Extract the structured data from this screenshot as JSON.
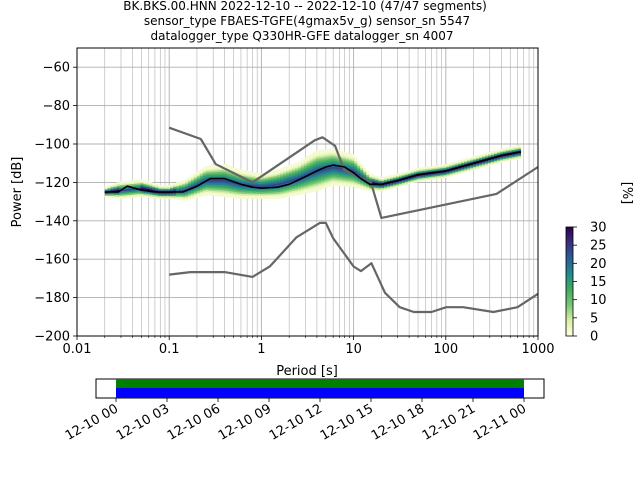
{
  "chart_data": {
    "type": "line",
    "title": [
      "BK.BKS.00.HNN   2022-12-10 -- 2022-12-10  (47/47 segments)",
      "sensor_type FBAES-TGFE(4gmax5v_g) sensor_sn 5547",
      "datalogger_type Q330HR-GFE datalogger_sn 4007"
    ],
    "xlabel": "Period [s]",
    "ylabel": "Power [dB]",
    "xscale": "log",
    "xlim": [
      0.01,
      1000
    ],
    "ylim": [
      -200,
      -50
    ],
    "x_ticks": [
      0.01,
      0.1,
      1,
      10,
      100,
      1000
    ],
    "x_tick_labels": [
      "0.01",
      "0.1",
      "1",
      "10",
      "100",
      "1000"
    ],
    "y_ticks": [
      -200,
      -180,
      -160,
      -140,
      -120,
      -100,
      -80,
      -60
    ],
    "y_tick_labels": [
      "−200",
      "−180",
      "−160",
      "−140",
      "−120",
      "−100",
      "−80",
      "−60"
    ],
    "grid": true,
    "series": [
      {
        "role": "nhnm",
        "color": "#666666",
        "x": [
          0.1,
          0.22,
          0.32,
          0.8,
          3.8,
          4.6,
          6.3,
          7.9,
          15.4,
          20,
          354.8,
          1000
        ],
        "y": [
          -91.5,
          -97.4,
          -110.5,
          -120,
          -98,
          -96.5,
          -101,
          -113.5,
          -120,
          -138.5,
          -126,
          -112
        ]
      },
      {
        "role": "nlnm",
        "color": "#666666",
        "x": [
          0.1,
          0.17,
          0.4,
          0.8,
          1.24,
          2.4,
          4.3,
          5,
          6,
          10,
          12,
          15.6,
          21.9,
          31.6,
          45,
          70,
          101,
          154,
          328,
          600,
          1000
        ],
        "y": [
          -168,
          -166.7,
          -166.7,
          -169.2,
          -163.7,
          -148.6,
          -141.1,
          -141.1,
          -149,
          -163.8,
          -166.2,
          -162.1,
          -177.5,
          -185,
          -187.5,
          -187.5,
          -185,
          -185,
          -187.5,
          -185,
          -178
        ]
      },
      {
        "role": "mode",
        "color": "#000000",
        "x": [
          0.02,
          0.028,
          0.035,
          0.05,
          0.07,
          0.1,
          0.14,
          0.2,
          0.28,
          0.4,
          0.6,
          0.8,
          1,
          1.5,
          2,
          3,
          4,
          5,
          6,
          8,
          10,
          12,
          15,
          20,
          30,
          50,
          70,
          100,
          200,
          400,
          650
        ],
        "y": [
          -125,
          -125,
          -122,
          -124,
          -125,
          -125,
          -125,
          -122,
          -118,
          -118,
          -121,
          -122.5,
          -123,
          -122.5,
          -121,
          -117,
          -114,
          -112,
          -111,
          -112,
          -115,
          -118,
          -121,
          -121,
          -119,
          -116,
          -115,
          -114,
          -110,
          -106,
          -104
        ]
      }
    ],
    "histogram": {
      "x": [
        0.02,
        0.03,
        0.05,
        0.08,
        0.1,
        0.15,
        0.25,
        0.4,
        0.6,
        1,
        1.5,
        2.5,
        4,
        6,
        10,
        15,
        20,
        30,
        50,
        100,
        200,
        400,
        650
      ],
      "center": [
        -125,
        -124,
        -123,
        -125,
        -125,
        -124,
        -119,
        -119,
        -121,
        -122,
        -121,
        -118,
        -114,
        -112,
        -114,
        -120,
        -121,
        -119,
        -116,
        -114,
        -110,
        -106,
        -104
      ],
      "spread": [
        2,
        4,
        4,
        3,
        3,
        5,
        7,
        8,
        7,
        6,
        7,
        8,
        10,
        9,
        8,
        4,
        3,
        3,
        3,
        3,
        3,
        3,
        3
      ]
    },
    "colorbar": {
      "label": "[%]",
      "range": [
        0,
        30
      ],
      "ticks": [
        0,
        5,
        10,
        15,
        20,
        25,
        30
      ],
      "tick_labels": [
        "0",
        "5",
        "10",
        "15",
        "20",
        "25",
        "30"
      ],
      "colormap": [
        "#ffffe5",
        "#d9f0a3",
        "#78c679",
        "#41ab5d",
        "#238b8e",
        "#2c5e96",
        "#3b2f7e",
        "#2d004b"
      ]
    },
    "timeline": {
      "tick_labels": [
        "12-10 00",
        "12-10 03",
        "12-10 06",
        "12-10 09",
        "12-10 12",
        "12-10 15",
        "12-10 18",
        "12-10 21",
        "12-11 00"
      ],
      "data_coverage_color": "#008000",
      "used_segments_color": "#0000ff"
    }
  }
}
